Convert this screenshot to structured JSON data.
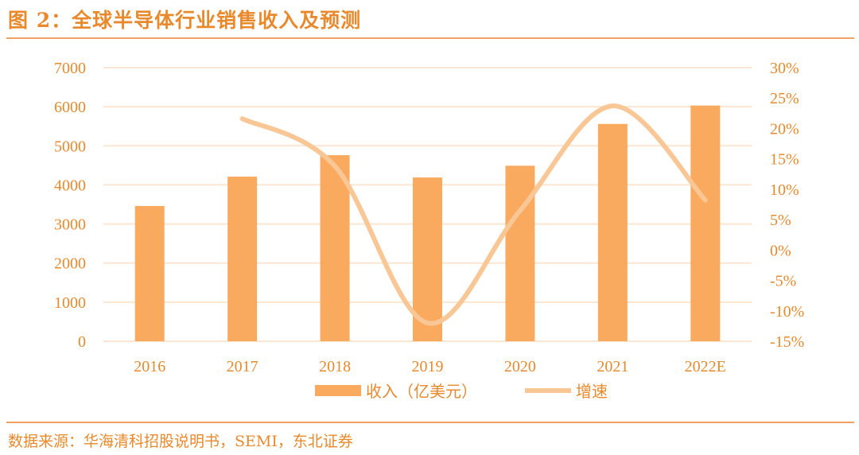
{
  "header": {
    "title": "图 2：全球半导体行业销售收入及预测"
  },
  "footer": {
    "source": "数据来源：华海清科招股说明书，SEMI，东北证券"
  },
  "chart_data": {
    "type": "bar+line",
    "title": "图 2：全球半导体行业销售收入及预测",
    "categories": [
      "2016",
      "2017",
      "2018",
      "2019",
      "2020",
      "2021",
      "2022E"
    ],
    "series": [
      {
        "name": "收入（亿美元）",
        "type": "bar",
        "axis": "left",
        "color": "#F9AA5E",
        "values": [
          3460,
          4210,
          4760,
          4190,
          4490,
          5560,
          6030
        ]
      },
      {
        "name": "增速",
        "type": "line",
        "axis": "right",
        "color": "#F8C795",
        "values": [
          null,
          21.6,
          13.8,
          -12.0,
          6.5,
          23.7,
          8.2
        ]
      }
    ],
    "y_left": {
      "range": [
        0,
        7000
      ],
      "ticks": [
        "0",
        "1000",
        "2000",
        "3000",
        "4000",
        "5000",
        "6000",
        "7000"
      ]
    },
    "y_right": {
      "range": [
        -15,
        30
      ],
      "ticks": [
        "-15%",
        "-10%",
        "-5%",
        "0%",
        "5%",
        "10%",
        "15%",
        "20%",
        "25%",
        "30%"
      ]
    },
    "grid": true,
    "legend": "bottom",
    "colors": {
      "text": "#E8892B",
      "grid": "#FBE6D2",
      "rule": "#F0A060"
    }
  }
}
